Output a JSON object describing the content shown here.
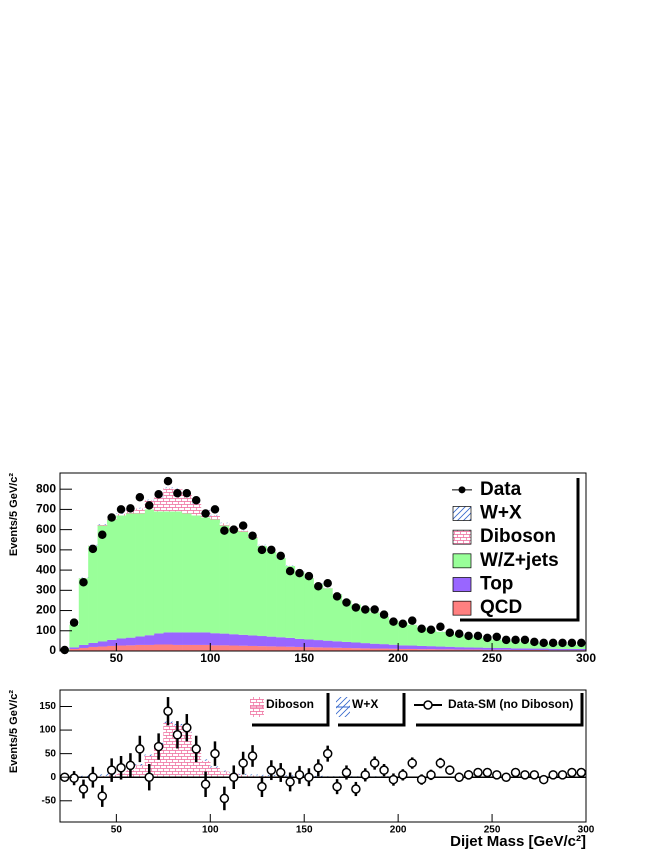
{
  "chart_data": [
    {
      "type": "histogram",
      "ylabel": "Events/5 GeV/c²",
      "bins": [
        20,
        25,
        30,
        35,
        40,
        45,
        50,
        55,
        60,
        65,
        70,
        75,
        80,
        85,
        90,
        95,
        100,
        105,
        110,
        115,
        120,
        125,
        130,
        135,
        140,
        145,
        150,
        155,
        160,
        165,
        170,
        175,
        180,
        185,
        190,
        195,
        200,
        205,
        210,
        215,
        220,
        225,
        230,
        235,
        240,
        245,
        250,
        255,
        260,
        265,
        270,
        275,
        280,
        285,
        290,
        295,
        300
      ],
      "xlim": [
        20,
        300
      ],
      "xticks": [
        50,
        100,
        150,
        200,
        250,
        300
      ],
      "ylim": [
        0,
        880
      ],
      "yticks": [
        0,
        100,
        200,
        300,
        400,
        500,
        600,
        700,
        800
      ],
      "legend": "upper right",
      "series": [
        {
          "name": "Data",
          "color": "#000000",
          "marker": "circle",
          "values": [
            5,
            140,
            340,
            505,
            575,
            660,
            700,
            705,
            760,
            720,
            775,
            840,
            780,
            780,
            745,
            680,
            700,
            595,
            600,
            620,
            570,
            500,
            500,
            470,
            395,
            385,
            370,
            320,
            335,
            270,
            240,
            215,
            205,
            205,
            180,
            145,
            135,
            150,
            110,
            105,
            120,
            90,
            85,
            75,
            75,
            65,
            70,
            55,
            55,
            55,
            45,
            40,
            40,
            40,
            40,
            40
          ]
        },
        {
          "name": "W+X",
          "color": "#3366cc",
          "fill": "hatch",
          "values": [
            0,
            1,
            2,
            3,
            3,
            3,
            3,
            3,
            3,
            3,
            3,
            3,
            3,
            3,
            3,
            3,
            3,
            2,
            2,
            2,
            2,
            2,
            2,
            2,
            2,
            2,
            2,
            2,
            1,
            1,
            1,
            1,
            1,
            1,
            1,
            1,
            1,
            1,
            1,
            1,
            1,
            1,
            1,
            1,
            1,
            1,
            1,
            1,
            1,
            1,
            1,
            1,
            1,
            1,
            1,
            1
          ]
        },
        {
          "name": "Diboson",
          "color": "#ee6699",
          "fill": "brick",
          "values": [
            0,
            0,
            1,
            2,
            3,
            5,
            8,
            15,
            25,
            45,
            70,
            115,
            110,
            95,
            60,
            35,
            20,
            12,
            8,
            5,
            4,
            3,
            3,
            2,
            2,
            2,
            1,
            1,
            1,
            1,
            1,
            1,
            1,
            1,
            1,
            1,
            0,
            0,
            0,
            0,
            0,
            0,
            0,
            0,
            0,
            0,
            0,
            0,
            0,
            0,
            0,
            0,
            0,
            0,
            0,
            0
          ]
        },
        {
          "name": "W/Z+jets",
          "color": "#99ff99",
          "fill": "solid",
          "values": [
            7,
            112,
            330,
            480,
            573,
            595,
            608,
            614,
            608,
            622,
            603,
            598,
            598,
            588,
            578,
            568,
            562,
            534,
            517,
            510,
            483,
            446,
            419,
            392,
            355,
            330,
            303,
            276,
            259,
            232,
            205,
            188,
            171,
            154,
            136,
            119,
            112,
            103,
            90,
            81,
            73,
            64,
            61,
            54,
            49,
            44,
            40,
            35,
            34,
            30,
            28,
            26,
            24,
            23,
            21,
            20
          ]
        },
        {
          "name": "Top",
          "color": "#9966ff",
          "fill": "solid",
          "values": [
            1,
            8,
            15,
            20,
            25,
            30,
            35,
            38,
            42,
            48,
            55,
            60,
            62,
            62,
            62,
            62,
            60,
            58,
            56,
            54,
            52,
            50,
            48,
            46,
            44,
            40,
            38,
            36,
            34,
            32,
            30,
            28,
            26,
            24,
            22,
            20,
            18,
            17,
            16,
            15,
            14,
            13,
            12,
            11,
            10,
            10,
            9,
            9,
            8,
            8,
            7,
            7,
            7,
            6,
            6,
            6
          ]
        },
        {
          "name": "QCD",
          "color": "#ff8080",
          "fill": "solid",
          "values": [
            2,
            10,
            15,
            20,
            22,
            25,
            27,
            28,
            30,
            30,
            32,
            32,
            30,
            30,
            30,
            30,
            28,
            28,
            27,
            26,
            25,
            24,
            23,
            22,
            21,
            20,
            19,
            18,
            17,
            16,
            15,
            14,
            13,
            12,
            12,
            11,
            10,
            10,
            9,
            9,
            8,
            8,
            7,
            7,
            7,
            6,
            6,
            6,
            5,
            5,
            5,
            5,
            4,
            4,
            4,
            4
          ]
        }
      ]
    },
    {
      "type": "histogram",
      "ylabel": "Events/5 GeV/c²",
      "xlabel": "Dijet Mass [GeV/c²]",
      "bins": [
        20,
        25,
        30,
        35,
        40,
        45,
        50,
        55,
        60,
        65,
        70,
        75,
        80,
        85,
        90,
        95,
        100,
        105,
        110,
        115,
        120,
        125,
        130,
        135,
        140,
        145,
        150,
        155,
        160,
        165,
        170,
        175,
        180,
        185,
        190,
        195,
        200,
        205,
        210,
        215,
        220,
        225,
        230,
        235,
        240,
        245,
        250,
        255,
        260,
        265,
        270,
        275,
        280,
        285,
        290,
        295,
        300
      ],
      "xlim": [
        20,
        300
      ],
      "xticks": [
        50,
        100,
        150,
        200,
        250,
        300
      ],
      "ylim": [
        -95,
        185
      ],
      "yticks": [
        -50,
        0,
        50,
        100,
        150
      ],
      "legend": "top",
      "series": [
        {
          "name": "Diboson",
          "color": "#ee6699",
          "fill": "brick",
          "values": [
            0,
            0,
            1,
            2,
            3,
            5,
            8,
            15,
            25,
            45,
            70,
            115,
            110,
            95,
            60,
            35,
            20,
            12,
            8,
            5,
            4,
            3,
            3,
            2,
            2,
            2,
            1,
            1,
            1,
            1,
            1,
            1,
            1,
            1,
            1,
            1,
            0,
            0,
            0,
            0,
            0,
            0,
            0,
            0,
            0,
            0,
            0,
            0,
            0,
            0,
            0,
            0,
            0,
            0,
            0,
            0
          ]
        },
        {
          "name": "W+X",
          "color": "#3366cc",
          "fill": "hatch",
          "values": [
            0,
            1,
            2,
            3,
            3,
            3,
            3,
            3,
            3,
            3,
            3,
            3,
            3,
            3,
            3,
            3,
            3,
            2,
            2,
            2,
            2,
            2,
            2,
            2,
            2,
            2,
            2,
            2,
            1,
            1,
            1,
            1,
            1,
            1,
            1,
            1,
            1,
            1,
            1,
            1,
            1,
            1,
            1,
            1,
            1,
            1,
            1,
            1,
            1,
            1,
            1,
            1,
            1,
            1,
            1,
            1
          ]
        },
        {
          "name": "Data-SM (no Diboson)",
          "color": "#000000",
          "marker": "open-circle",
          "values": [
            0,
            -2,
            -25,
            0,
            -40,
            15,
            20,
            25,
            60,
            0,
            65,
            140,
            90,
            105,
            60,
            -15,
            50,
            -45,
            0,
            30,
            45,
            -20,
            15,
            10,
            -10,
            5,
            0,
            20,
            50,
            -20,
            10,
            -25,
            5,
            30,
            15,
            -5,
            5,
            30,
            -5,
            5,
            30,
            15,
            0,
            5,
            10,
            10,
            5,
            0,
            10,
            5,
            5,
            -5,
            5,
            5,
            10,
            10
          ],
          "errors": [
            5,
            15,
            20,
            22,
            23,
            25,
            25,
            26,
            28,
            28,
            28,
            30,
            29,
            29,
            28,
            27,
            26,
            25,
            25,
            24,
            23,
            22,
            21,
            20,
            20,
            19,
            19,
            18,
            17,
            16,
            15,
            15,
            14,
            14,
            13,
            13,
            12,
            12,
            11,
            11,
            11,
            10,
            10,
            10,
            9,
            9,
            9,
            9,
            8,
            8,
            8,
            8,
            8,
            8,
            8,
            8
          ]
        }
      ]
    }
  ]
}
